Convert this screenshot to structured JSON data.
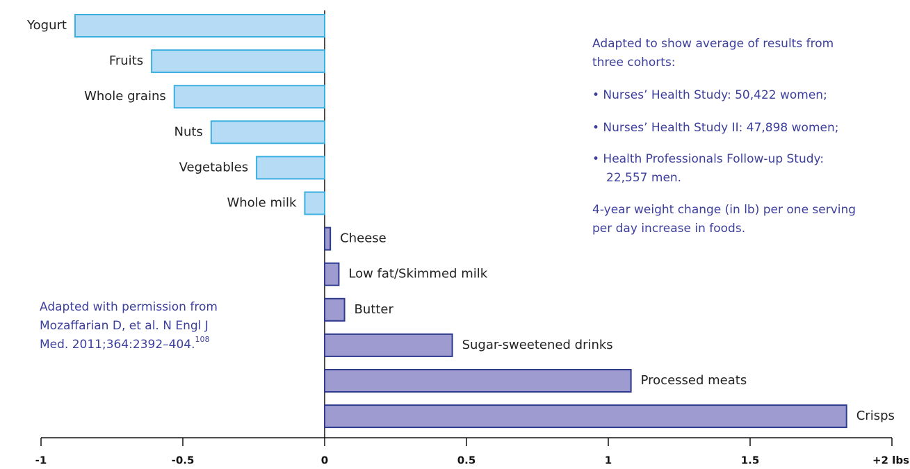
{
  "chart_data": {
    "type": "bar",
    "orientation": "horizontal",
    "categories": [
      "Yogurt",
      "Fruits",
      "Whole grains",
      "Nuts",
      "Vegetables",
      "Whole milk",
      "Cheese",
      "Low fat/Skimmed milk",
      "Butter",
      "Sugar-sweetened drinks",
      "Processed meats",
      "Crisps"
    ],
    "values": [
      -0.88,
      -0.61,
      -0.53,
      -0.4,
      -0.24,
      -0.07,
      0.02,
      0.05,
      0.07,
      0.45,
      1.08,
      1.84
    ],
    "negative_color": "#b5dcf4",
    "negative_edge": "#3bb0e0",
    "positive_color": "#9e9bd1",
    "positive_edge": "#2e3a8c",
    "xlim": [
      -1,
      2
    ],
    "xticks": [
      -1,
      -0.5,
      0,
      0.5,
      1,
      1.5,
      {
        "value": 2,
        "label": "+2 lbs"
      }
    ],
    "notes": [
      "Adapted to show average of results from",
      "three cohorts:",
      "• Nurses’ Health Study: 50,422 women;",
      "• Nurses’ Health Study II: 47,898 women;",
      "• Health Professionals Follow-up Study:",
      "22,557 men.",
      "4-year weight change (in lb) per one serving",
      "per day increase in foods."
    ],
    "source": [
      "Adapted with permission from",
      "Mozaffarian D, et al. N Engl J",
      "Med. 2011;364:2392–404."
    ],
    "source_ref": "108"
  }
}
